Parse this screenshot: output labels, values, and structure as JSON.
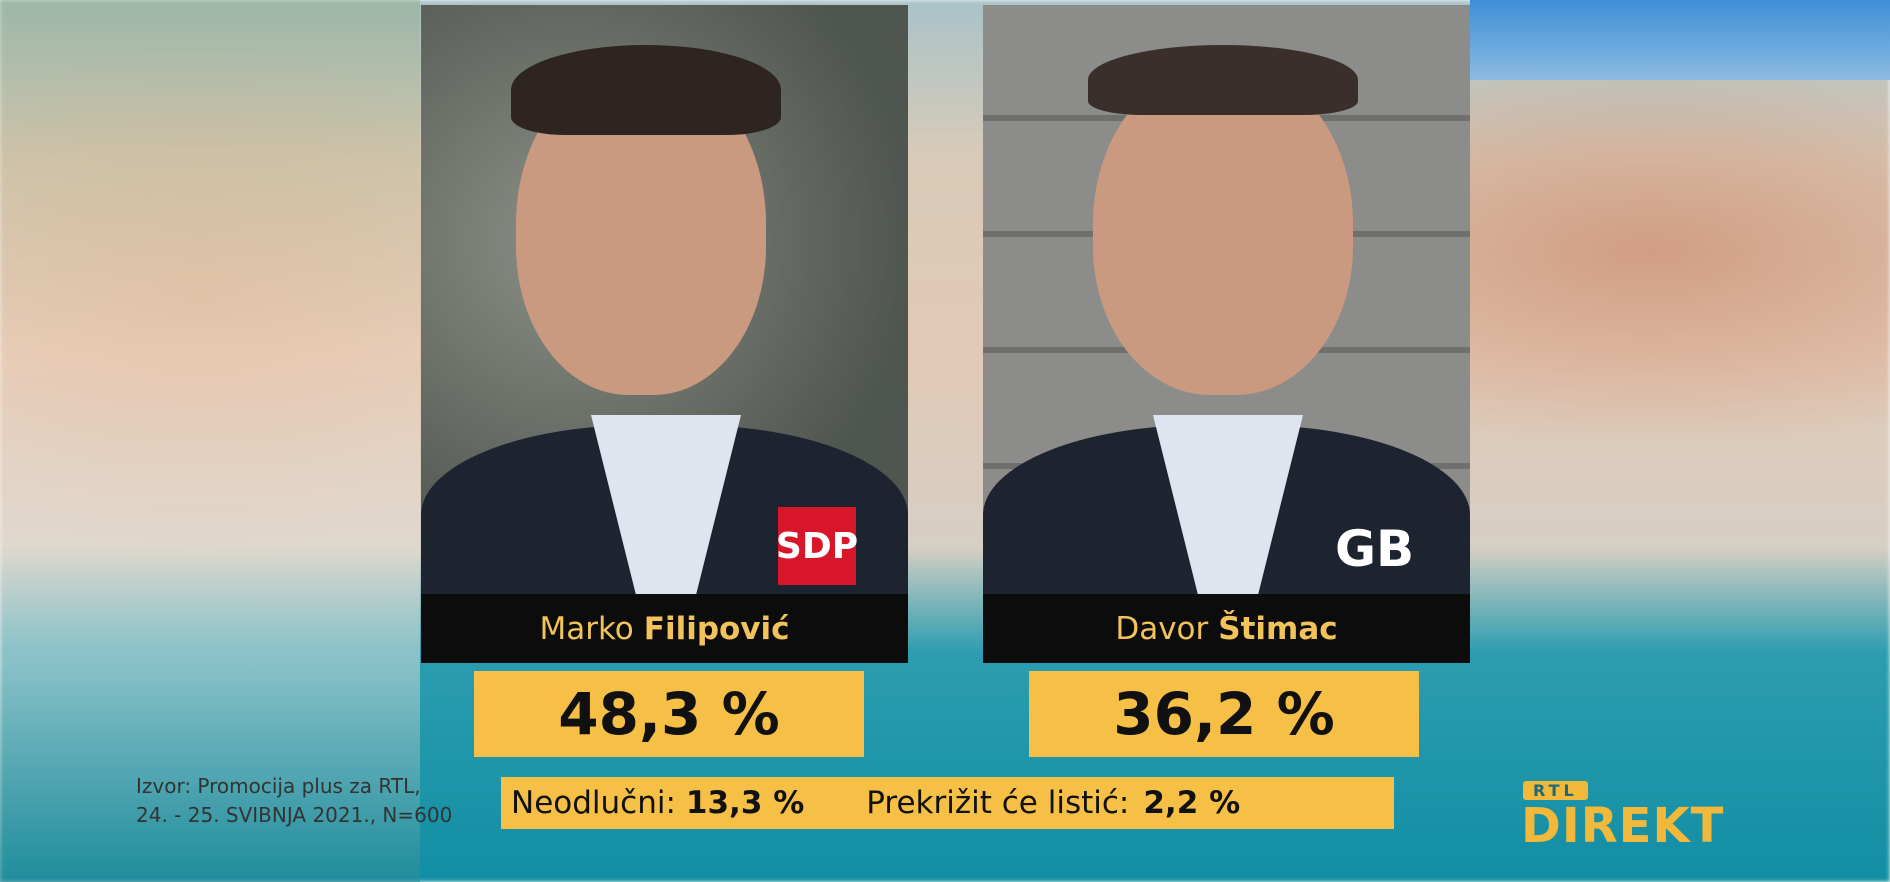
{
  "candidates": [
    {
      "first_name": "Marko",
      "last_name": "Filipović",
      "party": "SDP",
      "result": "48,3 %"
    },
    {
      "first_name": "Davor",
      "last_name": "Štimac",
      "party": "GB",
      "result": "36,2 %"
    }
  ],
  "source": [
    "Izvor: Promocija plus za RTL,",
    "24. - 25. SVIBNJA 2021., N=600"
  ],
  "undecided": {
    "label": "Neodlučni:",
    "value": "13,3 %"
  },
  "spoiled": {
    "label": "Prekrižit će listić:",
    "value": "2,2 %"
  },
  "logo": {
    "top": "RTL",
    "bottom": "DIREKT"
  }
}
